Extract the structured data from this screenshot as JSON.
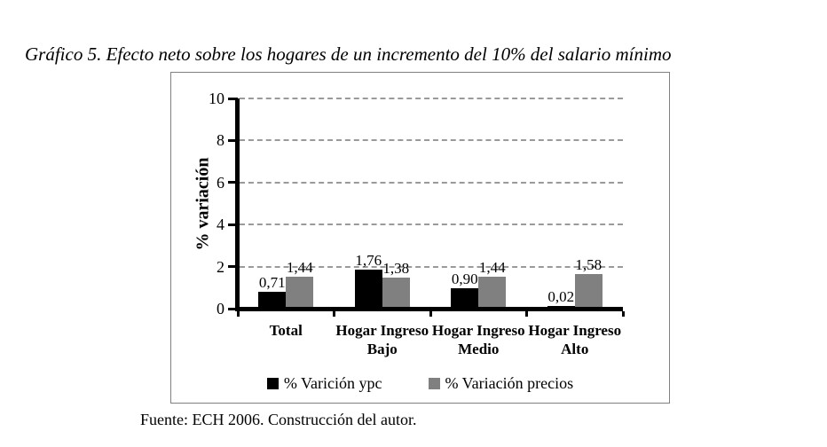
{
  "figure": {
    "title": "Gráfico 5. Efecto neto sobre los hogares de un incremento del 10% del salario mínimo",
    "source_note": "Fuente: ECH 2006. Construcción del autor."
  },
  "chart_data": {
    "type": "bar",
    "title": "",
    "xlabel": "",
    "ylabel": "% variación",
    "ylim": [
      0,
      10
    ],
    "yticks": [
      0,
      2,
      4,
      6,
      8,
      10
    ],
    "grid": "horizontal-dashed",
    "legend_position": "bottom",
    "decimal_separator": ",",
    "categories": [
      "Total",
      "Hogar Ingreso Bajo",
      "Hogar Ingreso Medio",
      "Hogar Ingreso Alto"
    ],
    "series": [
      {
        "name": "% Varición ypc",
        "color": "#000000",
        "values": [
          0.71,
          1.76,
          0.9,
          0.02
        ],
        "value_labels": [
          "0,71",
          "1,76",
          "0,90",
          "0,02"
        ]
      },
      {
        "name": "% Variación precios",
        "color": "#808080",
        "values": [
          1.44,
          1.38,
          1.44,
          1.58
        ],
        "value_labels": [
          "1,44",
          "1,38",
          "1,44",
          "1,58"
        ]
      }
    ]
  }
}
